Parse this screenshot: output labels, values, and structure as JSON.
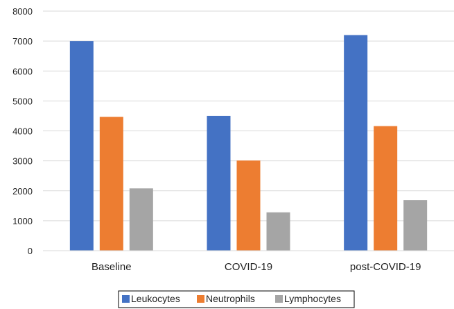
{
  "chart_data": {
    "type": "bar",
    "categories": [
      "Baseline",
      "COVID-19",
      "post-COVID-19"
    ],
    "series": [
      {
        "name": "Leukocytes",
        "values": [
          7000,
          4500,
          7200
        ],
        "color": "#4472C4"
      },
      {
        "name": "Neutrophils",
        "values": [
          4470,
          3010,
          4160
        ],
        "color": "#ED7D31"
      },
      {
        "name": "Lymphocytes",
        "values": [
          2080,
          1280,
          1690
        ],
        "color": "#A5A5A5"
      }
    ],
    "y_ticks": [
      "0",
      "1000",
      "2000",
      "3000",
      "4000",
      "5000",
      "6000",
      "7000",
      "8000"
    ],
    "ylim": [
      0,
      8000
    ],
    "grid": true,
    "legend_position": "bottom-center",
    "title": "",
    "xlabel": "",
    "ylabel": ""
  }
}
